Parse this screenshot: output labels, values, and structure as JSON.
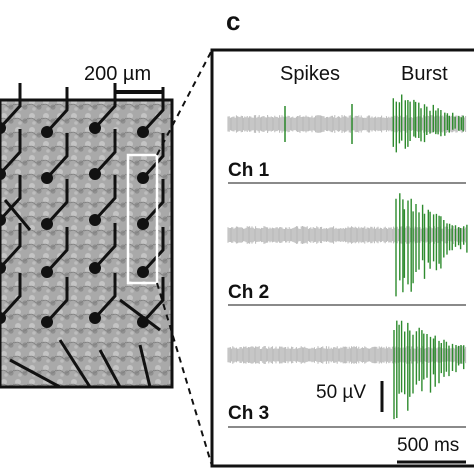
{
  "panel_label": "c",
  "scale_bar_micro": "200 µm",
  "annotations": {
    "spikes": "Spikes",
    "burst": "Burst"
  },
  "channels": [
    {
      "label": "Ch 1"
    },
    {
      "label": "Ch 2"
    },
    {
      "label": "Ch 3"
    }
  ],
  "scale_voltage": "50 µV",
  "scale_time": "500 ms",
  "colors": {
    "noise": "#b8b8b8",
    "spike": "#2e8b2e",
    "frame": "#111111",
    "channel_line": "#8a8a8a",
    "electrode": "#111111",
    "highlight_box": "#ffffff"
  }
}
